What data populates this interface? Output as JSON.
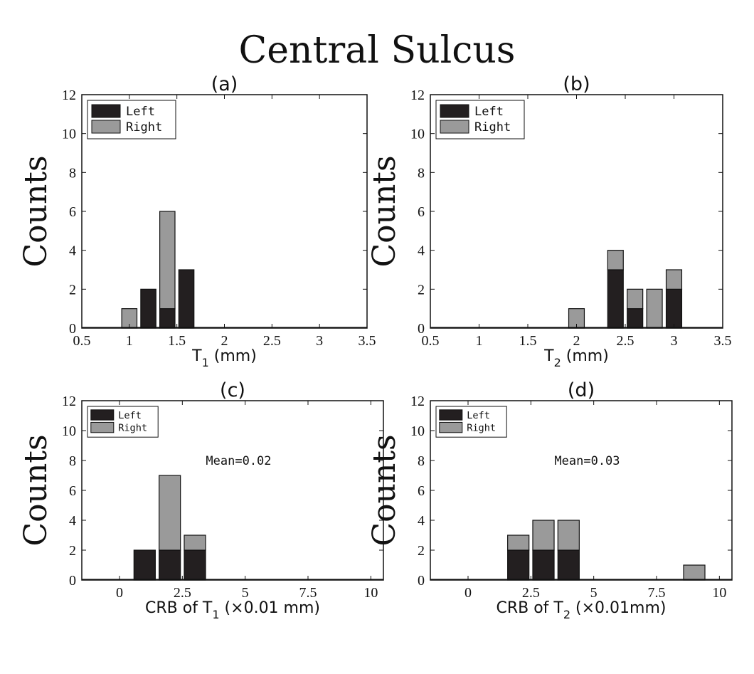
{
  "figure_title": "Central Sulcus",
  "colors": {
    "left": "#231f20",
    "right": "#9a9a9a"
  },
  "chart_data": [
    {
      "type": "bar",
      "stacked": true,
      "title": "(a)",
      "xlabel": "T",
      "xlabel_sub": "1",
      "xlabel_suffix": " (mm)",
      "ylabel": "Counts",
      "xlim": [
        0.5,
        3.5
      ],
      "ylim": [
        0,
        12
      ],
      "xticks": [
        0.5,
        1,
        1.5,
        2,
        2.5,
        3,
        3.5
      ],
      "xticklabels": [
        "0.5",
        "1",
        "1.5",
        "2",
        "2.5",
        "3",
        "3.5"
      ],
      "yticks": [
        0,
        2,
        4,
        6,
        8,
        10,
        12
      ],
      "bar_width": 0.16,
      "legend": [
        "Left",
        "Right"
      ],
      "legend_position": "top-left",
      "x": [
        1.0,
        1.2,
        1.4,
        1.6
      ],
      "series": [
        {
          "name": "Left",
          "values": [
            0,
            2,
            1,
            3
          ]
        },
        {
          "name": "Right",
          "values": [
            1,
            0,
            5,
            0
          ]
        }
      ]
    },
    {
      "type": "bar",
      "stacked": true,
      "title": "(b)",
      "xlabel": "T",
      "xlabel_sub": "2",
      "xlabel_suffix": " (mm)",
      "ylabel": "Counts",
      "xlim": [
        0.5,
        3.5
      ],
      "ylim": [
        0,
        12
      ],
      "xticks": [
        0.5,
        1,
        1.5,
        2,
        2.5,
        3,
        3.5
      ],
      "xticklabels": [
        "0.5",
        "1",
        "1.5",
        "2",
        "2.5",
        "3",
        "3.5"
      ],
      "yticks": [
        0,
        2,
        4,
        6,
        8,
        10,
        12
      ],
      "bar_width": 0.16,
      "legend": [
        "Left",
        "Right"
      ],
      "legend_position": "top-left",
      "x": [
        2.0,
        2.4,
        2.6,
        2.8,
        3.0
      ],
      "series": [
        {
          "name": "Left",
          "values": [
            0,
            3,
            1,
            0,
            2
          ]
        },
        {
          "name": "Right",
          "values": [
            1,
            1,
            1,
            2,
            1
          ]
        }
      ]
    },
    {
      "type": "bar",
      "stacked": true,
      "title": "(c)",
      "xlabel": "CRB of T",
      "xlabel_sub": "1",
      "xlabel_suffix": " (×0.01 mm)",
      "ylabel": "Counts",
      "annotation": "Mean=0.02",
      "xlim": [
        -1.5,
        10.5
      ],
      "ylim": [
        0,
        12
      ],
      "xticks": [
        0,
        2.5,
        5,
        7.5,
        10
      ],
      "xticklabels": [
        "0",
        "2.5",
        "5",
        "7.5",
        "10"
      ],
      "yticks": [
        0,
        2,
        4,
        6,
        8,
        10,
        12
      ],
      "bar_width": 0.85,
      "legend": [
        "Left",
        "Right"
      ],
      "legend_position": "top-left",
      "x": [
        1,
        2,
        3
      ],
      "series": [
        {
          "name": "Left",
          "values": [
            2,
            2,
            2
          ]
        },
        {
          "name": "Right",
          "values": [
            0,
            5,
            1
          ]
        }
      ]
    },
    {
      "type": "bar",
      "stacked": true,
      "title": "(d)",
      "xlabel": "CRB of T",
      "xlabel_sub": "2",
      "xlabel_suffix": " (×0.01mm)",
      "ylabel": "Counts",
      "annotation": "Mean=0.03",
      "xlim": [
        -1.5,
        10.5
      ],
      "ylim": [
        0,
        12
      ],
      "xticks": [
        0,
        2.5,
        5,
        7.5,
        10
      ],
      "xticklabels": [
        "0",
        "2.5",
        "5",
        "7.5",
        "10"
      ],
      "yticks": [
        0,
        2,
        4,
        6,
        8,
        10,
        12
      ],
      "bar_width": 0.85,
      "legend": [
        "Left",
        "Right"
      ],
      "legend_position": "top-left",
      "x": [
        2,
        3,
        4,
        9
      ],
      "series": [
        {
          "name": "Left",
          "values": [
            2,
            2,
            2,
            0
          ]
        },
        {
          "name": "Right",
          "values": [
            1,
            2,
            2,
            1
          ]
        }
      ]
    }
  ]
}
